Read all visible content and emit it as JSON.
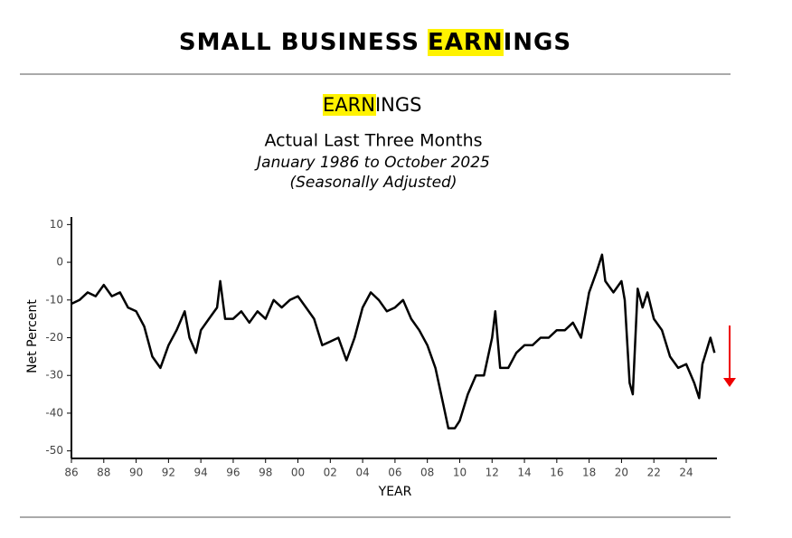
{
  "header": {
    "title_parts": [
      "SMALL BUSINESS",
      "EARN",
      "INGS"
    ]
  },
  "chart_data": {
    "type": "line",
    "heading_parts": [
      "EARN",
      "INGS"
    ],
    "title": "Actual Last Three Months",
    "subtitle": "January 1986 to October 2025",
    "note": "(Seasonally Adjusted)",
    "x_label": "YEAR",
    "y_label": "Net Percent",
    "color": "#000000",
    "x": [
      1986,
      1986.5,
      1987,
      1987.5,
      1988,
      1988.5,
      1989,
      1989.5,
      1990,
      1990.5,
      1991,
      1991.5,
      1992,
      1992.5,
      1993,
      1993.3,
      1993.7,
      1994,
      1994.5,
      1995,
      1995.2,
      1995.5,
      1996,
      1996.5,
      1997,
      1997.5,
      1998,
      1998.5,
      1999,
      1999.5,
      2000,
      2000.5,
      2001,
      2001.5,
      2002,
      2002.5,
      2003,
      2003.5,
      2004,
      2004.5,
      2005,
      2005.5,
      2006,
      2006.5,
      2007,
      2007.5,
      2008,
      2008.5,
      2009,
      2009.3,
      2009.7,
      2010,
      2010.5,
      2011,
      2011.5,
      2012,
      2012.2,
      2012.5,
      2013,
      2013.5,
      2014,
      2014.5,
      2015,
      2015.5,
      2016,
      2016.5,
      2017,
      2017.5,
      2018,
      2018.5,
      2018.8,
      2019,
      2019.5,
      2020,
      2020.2,
      2020.5,
      2020.7,
      2021,
      2021.3,
      2021.6,
      2022,
      2022.5,
      2023,
      2023.5,
      2024,
      2024.5,
      2024.8,
      2025,
      2025.5,
      2025.75
    ],
    "values": [
      -11,
      -10,
      -8,
      -9,
      -6,
      -9,
      -8,
      -12,
      -13,
      -17,
      -25,
      -28,
      -22,
      -18,
      -13,
      -20,
      -24,
      -18,
      -15,
      -12,
      -5,
      -15,
      -15,
      -13,
      -16,
      -13,
      -15,
      -10,
      -12,
      -10,
      -9,
      -12,
      -15,
      -22,
      -21,
      -20,
      -26,
      -20,
      -12,
      -8,
      -10,
      -13,
      -12,
      -10,
      -15,
      -18,
      -22,
      -28,
      -38,
      -44,
      -44,
      -42,
      -35,
      -30,
      -30,
      -20,
      -13,
      -28,
      -28,
      -24,
      -22,
      -22,
      -20,
      -20,
      -18,
      -18,
      -16,
      -20,
      -8,
      -2,
      2,
      -5,
      -8,
      -5,
      -10,
      -32,
      -35,
      -7,
      -12,
      -8,
      -15,
      -18,
      -25,
      -28,
      -27,
      -32,
      -36,
      -27,
      -20,
      -24
    ],
    "xlim": [
      1986,
      2025.9
    ],
    "ylim": [
      -52,
      12
    ],
    "xticks": [
      {
        "value": 1986,
        "label": "86"
      },
      {
        "value": 1988,
        "label": "88"
      },
      {
        "value": 1990,
        "label": "90"
      },
      {
        "value": 1992,
        "label": "92"
      },
      {
        "value": 1994,
        "label": "94"
      },
      {
        "value": 1996,
        "label": "96"
      },
      {
        "value": 1998,
        "label": "98"
      },
      {
        "value": 2000,
        "label": "00"
      },
      {
        "value": 2002,
        "label": "02"
      },
      {
        "value": 2004,
        "label": "04"
      },
      {
        "value": 2006,
        "label": "06"
      },
      {
        "value": 2008,
        "label": "08"
      },
      {
        "value": 2010,
        "label": "10"
      },
      {
        "value": 2012,
        "label": "12"
      },
      {
        "value": 2014,
        "label": "14"
      },
      {
        "value": 2016,
        "label": "16"
      },
      {
        "value": 2018,
        "label": "18"
      },
      {
        "value": 2020,
        "label": "20"
      },
      {
        "value": 2022,
        "label": "22"
      },
      {
        "value": 2024,
        "label": "24"
      }
    ],
    "yticks": [
      10,
      0,
      -10,
      -20,
      -30,
      -40,
      -50
    ]
  }
}
